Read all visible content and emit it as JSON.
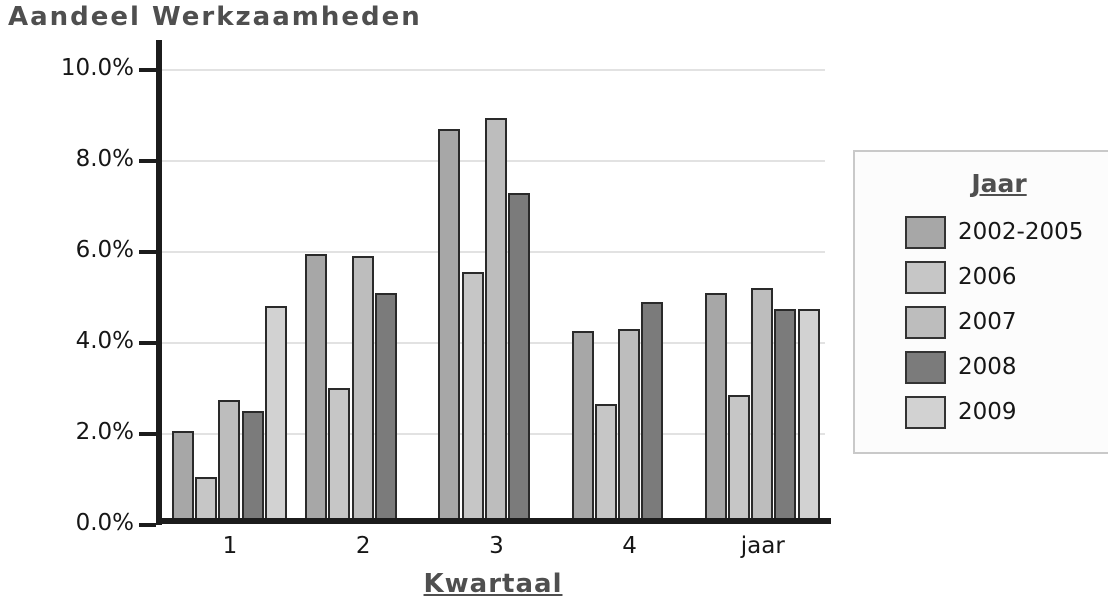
{
  "chart_data": {
    "type": "bar",
    "title": "Aandeel Werkzaamheden",
    "xlabel": "Kwartaal",
    "ylabel": "",
    "legend_title": "Jaar",
    "legend_position": "right",
    "grid": true,
    "ylim": [
      0,
      10
    ],
    "categories": [
      "1",
      "2",
      "3",
      "4",
      "jaar"
    ],
    "yticks": [
      {
        "value": 0,
        "label": "0.0%"
      },
      {
        "value": 2,
        "label": "2.0%"
      },
      {
        "value": 4,
        "label": "4.0%"
      },
      {
        "value": 6,
        "label": "6.0%"
      },
      {
        "value": 8,
        "label": "8.0%"
      },
      {
        "value": 10,
        "label": "10.0%"
      }
    ],
    "series": [
      {
        "name": "2002-2005",
        "color": "#a7a7a7",
        "values": [
          2.05,
          5.95,
          8.7,
          4.25,
          5.1
        ]
      },
      {
        "name": "2006",
        "color": "#c6c6c6",
        "values": [
          1.05,
          3.0,
          5.55,
          2.65,
          2.85
        ]
      },
      {
        "name": "2007",
        "color": "#bdbdbd",
        "values": [
          2.75,
          5.9,
          8.95,
          4.3,
          5.2
        ]
      },
      {
        "name": "2008",
        "color": "#7b7b7b",
        "values": [
          2.5,
          5.1,
          7.3,
          4.9,
          4.75
        ]
      },
      {
        "name": "2009",
        "color": "#d2d2d2",
        "values": [
          4.8,
          null,
          null,
          null,
          4.75
        ]
      }
    ],
    "style": {
      "gridline_color": "#e2e2e2",
      "axis_line_color": "#1c1c1c",
      "bar_border_color": "#2a2a2a",
      "tick_text_color": "#161616",
      "title_text_color": "#4f4f4f",
      "legend_border_color": "#c9c9c9",
      "legend_bg_color": "#fcfcfc"
    }
  }
}
